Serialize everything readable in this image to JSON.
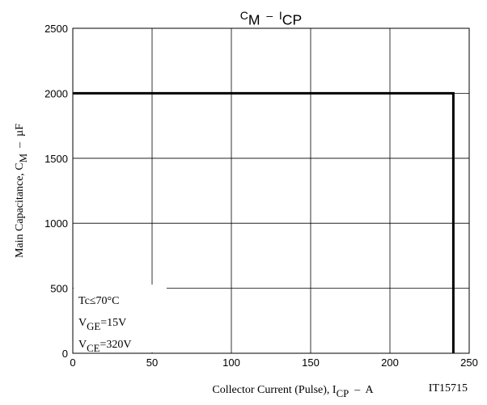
{
  "chart_data": {
    "type": "line",
    "title": [
      {
        "text": "C"
      },
      {
        "text": "M",
        "sub": true
      },
      {
        "text": "  –  I"
      },
      {
        "text": "CP",
        "sub": true
      }
    ],
    "xlabel": [
      {
        "text": "Collector Current (Pulse), I"
      },
      {
        "text": "CP",
        "sub": true
      },
      {
        "text": "  –  A"
      }
    ],
    "ylabel": [
      {
        "text": "Main Capacitance, C"
      },
      {
        "text": "M",
        "sub": true
      },
      {
        "text": "  –  µF"
      }
    ],
    "annotations": [
      [
        {
          "text": "Tc≤70°C"
        }
      ],
      [
        {
          "text": "V"
        },
        {
          "text": "GE",
          "sub": true
        },
        {
          "text": "=15V"
        }
      ],
      [
        {
          "text": "V"
        },
        {
          "text": "CE",
          "sub": true
        },
        {
          "text": "=320V"
        }
      ]
    ],
    "code": "IT15715",
    "series": [
      {
        "x": [
          0,
          240,
          240
        ],
        "values": [
          2000,
          2000,
          0
        ],
        "color": "#000000"
      }
    ],
    "xlim": [
      0,
      250
    ],
    "xticks": [
      0,
      50,
      100,
      150,
      200,
      250
    ],
    "ylim": [
      0,
      2500
    ],
    "yticks": [
      0,
      500,
      1000,
      1500,
      2000,
      2500
    ],
    "grid": true
  }
}
